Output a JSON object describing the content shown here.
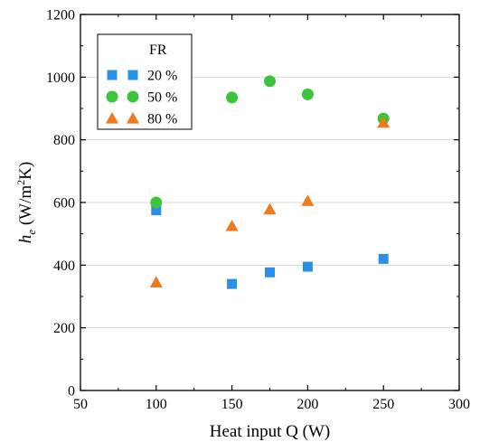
{
  "chart_data": {
    "type": "scatter",
    "title": "",
    "xlabel": "Heat input Q (W)",
    "ylabel_main": "h",
    "ylabel_sub": "e",
    "ylabel_unit_pre": " (W/m",
    "ylabel_unit_sup": "2",
    "ylabel_unit_post": "K)",
    "xlim": [
      50,
      300
    ],
    "ylim": [
      0,
      1200
    ],
    "xticks": [
      50,
      100,
      150,
      200,
      250,
      300
    ],
    "yticks": [
      0,
      200,
      400,
      600,
      800,
      1000,
      1200
    ],
    "grid": true,
    "legend_title": "FR",
    "legend_position": "top-left",
    "series": [
      {
        "name": "20 %",
        "marker": "square",
        "color": "#2b8fe8",
        "x": [
          100,
          150,
          175,
          200,
          250
        ],
        "y": [
          575,
          340,
          377,
          395,
          420
        ]
      },
      {
        "name": "50 %",
        "marker": "circle",
        "color": "#3cc43c",
        "x": [
          100,
          150,
          175,
          200,
          250
        ],
        "y": [
          600,
          935,
          987,
          945,
          868
        ]
      },
      {
        "name": "80 %",
        "marker": "triangle",
        "color": "#f07a1e",
        "x": [
          100,
          150,
          175,
          200,
          250
        ],
        "y": [
          345,
          525,
          578,
          605,
          855
        ]
      }
    ]
  }
}
